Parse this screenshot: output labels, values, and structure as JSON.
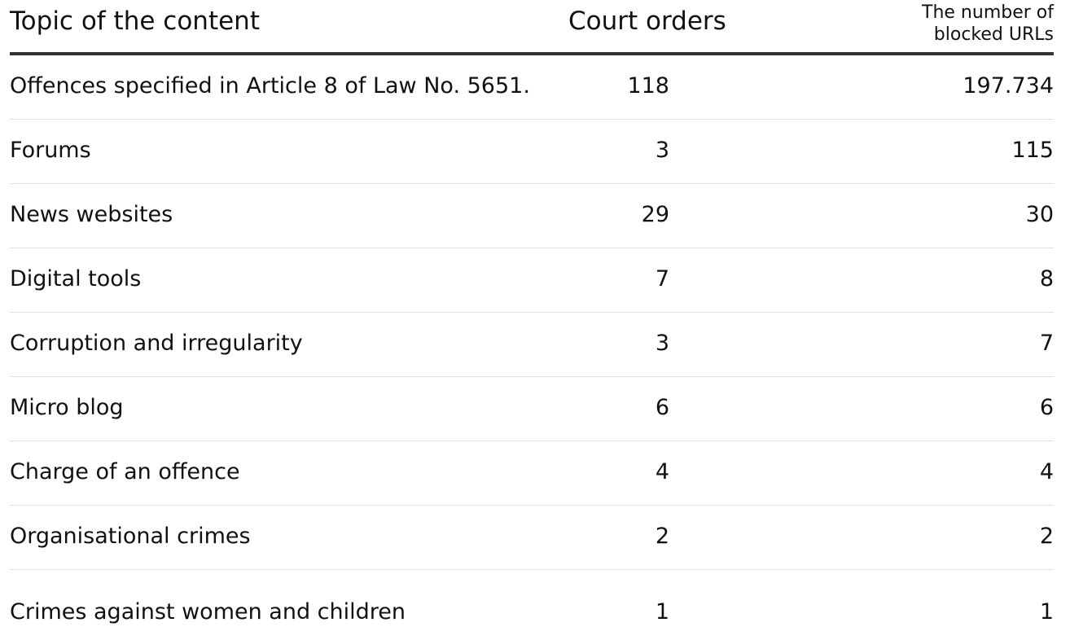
{
  "chart_data": {
    "type": "table",
    "columns": [
      "Topic of the content",
      "Court orders",
      "The number of blocked URLs"
    ],
    "rows": [
      {
        "topic": "Offences specified in Article 8 of Law No. 5651.",
        "court_orders": "118",
        "blocked_urls": "197.734"
      },
      {
        "topic": "Forums",
        "court_orders": "3",
        "blocked_urls": "115"
      },
      {
        "topic": "News websites",
        "court_orders": "29",
        "blocked_urls": "30"
      },
      {
        "topic": "Digital tools",
        "court_orders": "7",
        "blocked_urls": "8"
      },
      {
        "topic": "Corruption and irregularity",
        "court_orders": "3",
        "blocked_urls": "7"
      },
      {
        "topic": "Micro blog",
        "court_orders": "6",
        "blocked_urls": "6"
      },
      {
        "topic": "Charge of an offence",
        "court_orders": "4",
        "blocked_urls": "4"
      },
      {
        "topic": "Organisational crimes",
        "court_orders": "2",
        "blocked_urls": "2"
      },
      {
        "topic": "Crimes against women and children",
        "court_orders": "1",
        "blocked_urls": "1"
      }
    ]
  }
}
